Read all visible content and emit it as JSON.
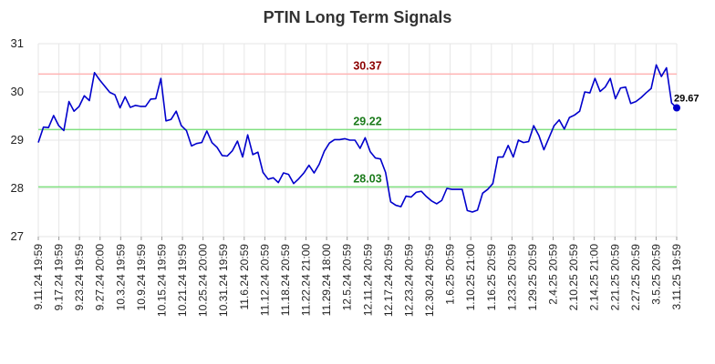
{
  "chart_data": {
    "type": "line",
    "title": "PTIN Long Term Signals",
    "xlabel": "",
    "ylabel": "",
    "ylim": [
      27,
      31
    ],
    "yticks": [
      "27",
      "28",
      "29",
      "30",
      "31"
    ],
    "xticks": [
      "9.11.24 19:59",
      "9.17.24 19:59",
      "9.23.24 19:59",
      "9.27.24 20:00",
      "10.3.24 19:59",
      "10.9.24 19:59",
      "10.15.24 19:59",
      "10.21.24 19:59",
      "10.25.24 20:00",
      "10.31.24 19:59",
      "11.6.24 20:59",
      "11.12.24 20:59",
      "11.18.24 20:59",
      "11.22.24 21:00",
      "11.29.24 18:00",
      "12.5.24 20:59",
      "12.11.24 20:59",
      "12.17.24 20:59",
      "12.23.24 20:59",
      "12.30.24 20:59",
      "1.6.25 20:59",
      "1.10.25 21:00",
      "1.16.25 20:59",
      "1.23.25 20:59",
      "1.29.25 20:59",
      "2.4.25 20:59",
      "2.10.25 20:59",
      "2.14.25 21:00",
      "2.21.25 20:59",
      "2.27.25 20:59",
      "3.5.25 20:59",
      "3.11.25 19:59"
    ],
    "grid": true,
    "colors": {
      "line": "#0000cc",
      "resistance": "#ffb3b3",
      "support": "#80e080",
      "resistance_text": "#8b0000",
      "support_text": "#1a7a1a"
    },
    "levels": [
      {
        "value": 30.37,
        "label": "30.37",
        "kind": "resistance"
      },
      {
        "value": 29.22,
        "label": "29.22",
        "kind": "support"
      },
      {
        "value": 28.03,
        "label": "28.03",
        "kind": "support"
      }
    ],
    "last_value": {
      "value": 29.67,
      "label": "29.67"
    },
    "series": [
      {
        "values": [
          28.95,
          29.27,
          29.26,
          29.51,
          29.3,
          29.2,
          29.8,
          29.6,
          29.7,
          29.92,
          29.82,
          30.4,
          30.25,
          30.12,
          29.99,
          29.94,
          29.67,
          29.9,
          29.68,
          29.72,
          29.7,
          29.7,
          29.85,
          29.86,
          30.28,
          29.4,
          29.43,
          29.6,
          29.3,
          29.2,
          28.88,
          28.93,
          28.95,
          29.19,
          28.95,
          28.85,
          28.68,
          28.67,
          28.78,
          28.98,
          28.65,
          29.11,
          28.7,
          28.75,
          28.33,
          28.19,
          28.22,
          28.12,
          28.32,
          28.29,
          28.1,
          28.2,
          28.32,
          28.48,
          28.32,
          28.5,
          28.77,
          28.94,
          29.01,
          29.01,
          29.03,
          29.0,
          29.0,
          28.83,
          29.05,
          28.76,
          28.63,
          28.61,
          28.33,
          27.72,
          27.65,
          27.62,
          27.84,
          27.82,
          27.92,
          27.94,
          27.83,
          27.74,
          27.68,
          27.75,
          28.0,
          27.98,
          27.98,
          27.98,
          27.54,
          27.51,
          27.55,
          27.9,
          27.98,
          28.1,
          28.65,
          28.65,
          28.89,
          28.65,
          29.0,
          28.95,
          28.97,
          29.3,
          29.1,
          28.8,
          29.05,
          29.3,
          29.42,
          29.23,
          29.47,
          29.52,
          29.6,
          30.0,
          29.98,
          30.28,
          30.01,
          30.1,
          30.28,
          29.86,
          30.08,
          30.1,
          29.76,
          29.8,
          29.88,
          29.98,
          30.07,
          30.56,
          30.32,
          30.5,
          29.77,
          29.67
        ]
      }
    ]
  }
}
